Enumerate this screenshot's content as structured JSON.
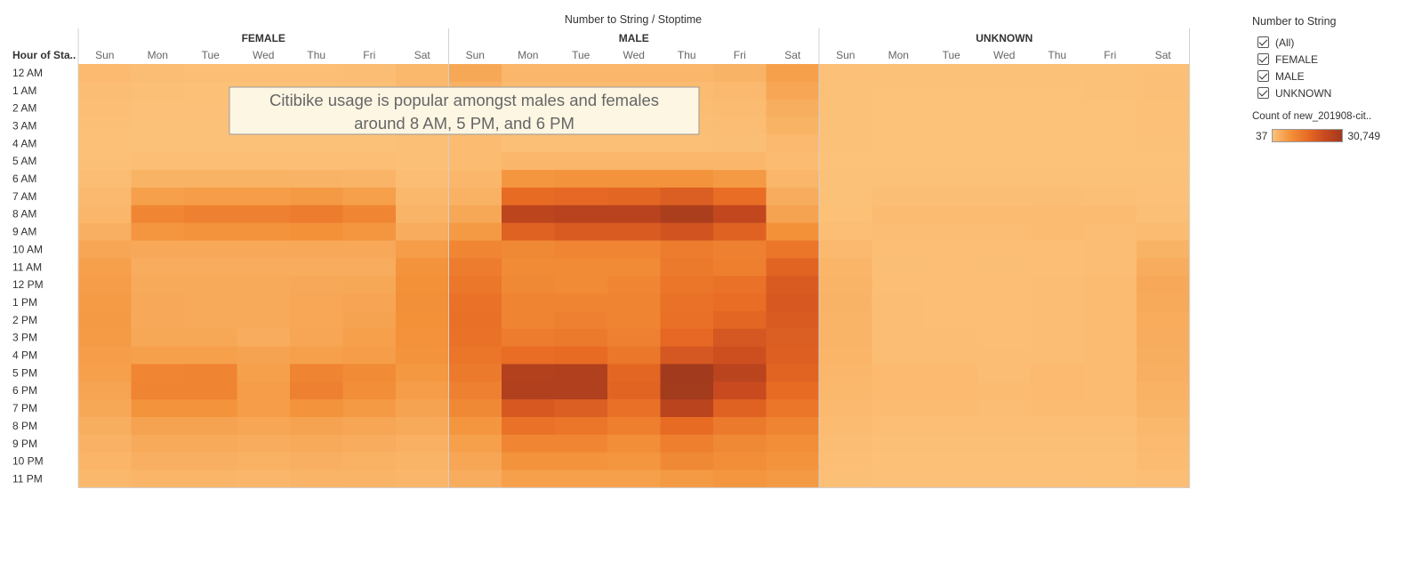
{
  "chart_data": {
    "type": "heatmap",
    "title": "Number to String / Stoptime",
    "row_header": "Hour of Sta..",
    "groups": [
      "FEMALE",
      "MALE",
      "UNKNOWN"
    ],
    "columns": [
      "Sun",
      "Mon",
      "Tue",
      "Wed",
      "Thu",
      "Fri",
      "Sat"
    ],
    "rows": [
      "12 AM",
      "1 AM",
      "2 AM",
      "3 AM",
      "4 AM",
      "5 AM",
      "6 AM",
      "7 AM",
      "8 AM",
      "9 AM",
      "10 AM",
      "11 AM",
      "12 PM",
      "1 PM",
      "2 PM",
      "3 PM",
      "4 PM",
      "5 PM",
      "6 PM",
      "7 PM",
      "8 PM",
      "9 PM",
      "10 PM",
      "11 PM"
    ],
    "color_range": [
      37,
      30749
    ],
    "values": {
      "FEMALE": [
        [
          1300,
          800,
          700,
          700,
          700,
          800,
          1700
        ],
        [
          900,
          500,
          400,
          400,
          400,
          500,
          1400
        ],
        [
          700,
          300,
          300,
          300,
          300,
          400,
          1000
        ],
        [
          500,
          200,
          200,
          200,
          200,
          300,
          800
        ],
        [
          400,
          200,
          200,
          200,
          200,
          200,
          500
        ],
        [
          500,
          700,
          700,
          700,
          700,
          700,
          500
        ],
        [
          900,
          2500,
          2500,
          2500,
          2400,
          2200,
          900
        ],
        [
          1400,
          5500,
          6000,
          6000,
          6500,
          5500,
          1600
        ],
        [
          2000,
          10000,
          11000,
          11000,
          12000,
          10000,
          2300
        ],
        [
          3000,
          7000,
          7500,
          7500,
          8000,
          7000,
          3500
        ],
        [
          4500,
          4000,
          4000,
          4000,
          4000,
          4000,
          6000
        ],
        [
          5500,
          3500,
          3500,
          3500,
          3500,
          3500,
          7500
        ],
        [
          6000,
          3800,
          3800,
          3800,
          4000,
          4200,
          8000
        ],
        [
          6300,
          4000,
          3800,
          3800,
          4300,
          4600,
          8200
        ],
        [
          6500,
          4000,
          3800,
          3800,
          4300,
          5000,
          8000
        ],
        [
          6300,
          4200,
          4200,
          3500,
          4500,
          5500,
          7800
        ],
        [
          6000,
          5500,
          5500,
          5000,
          5500,
          6000,
          7500
        ],
        [
          5500,
          10000,
          10500,
          5500,
          10500,
          9000,
          6800
        ],
        [
          4800,
          10500,
          10500,
          6000,
          11000,
          8500,
          6000
        ],
        [
          4200,
          7500,
          7500,
          6000,
          7500,
          6500,
          5000
        ],
        [
          3300,
          5000,
          5000,
          4500,
          5000,
          4500,
          3800
        ],
        [
          2600,
          3800,
          3800,
          3500,
          3800,
          3500,
          2900
        ],
        [
          2100,
          3000,
          3000,
          2800,
          3000,
          2800,
          2300
        ],
        [
          1600,
          2100,
          2100,
          2000,
          2200,
          2300,
          1900
        ]
      ],
      "MALE": [
        [
          4200,
          1800,
          1800,
          1900,
          2000,
          2400,
          5500
        ],
        [
          2800,
          1200,
          1100,
          1200,
          1200,
          1500,
          4500
        ],
        [
          2000,
          800,
          800,
          800,
          800,
          1000,
          3300
        ],
        [
          1400,
          600,
          600,
          600,
          600,
          800,
          2500
        ],
        [
          1000,
          500,
          500,
          500,
          500,
          600,
          1500
        ],
        [
          1000,
          1800,
          2000,
          2000,
          2000,
          1800,
          1000
        ],
        [
          1800,
          7000,
          7500,
          7500,
          7500,
          6500,
          2000
        ],
        [
          2800,
          15500,
          16000,
          16500,
          18500,
          15000,
          3400
        ],
        [
          4200,
          25500,
          26500,
          26500,
          29000,
          24500,
          5000
        ],
        [
          6500,
          17500,
          19000,
          19000,
          21000,
          17500,
          8000
        ],
        [
          10000,
          9500,
          10000,
          10000,
          12000,
          11000,
          13500
        ],
        [
          12000,
          9000,
          9000,
          9000,
          12500,
          11500,
          17000
        ],
        [
          13000,
          9500,
          9000,
          10000,
          13500,
          14000,
          19000
        ],
        [
          14000,
          10500,
          10500,
          10500,
          14000,
          15000,
          19500
        ],
        [
          14500,
          10500,
          11000,
          10500,
          14500,
          16500,
          19000
        ],
        [
          14000,
          12000,
          12500,
          11000,
          16000,
          20000,
          18500
        ],
        [
          13500,
          15000,
          15500,
          13000,
          20000,
          22000,
          18000
        ],
        [
          12500,
          27500,
          28000,
          16500,
          30749,
          26000,
          17000
        ],
        [
          11000,
          28000,
          28000,
          17000,
          30500,
          23000,
          15500
        ],
        [
          9500,
          19500,
          18500,
          14500,
          26000,
          17500,
          13500
        ],
        [
          7000,
          14000,
          13500,
          11500,
          15500,
          12500,
          10500
        ],
        [
          5500,
          10000,
          10000,
          8500,
          11500,
          9500,
          8500
        ],
        [
          4500,
          7500,
          7500,
          7000,
          9500,
          8500,
          7500
        ],
        [
          3500,
          5500,
          5500,
          5500,
          6500,
          7000,
          6500
        ]
      ],
      "UNKNOWN": [
        [
          300,
          150,
          150,
          150,
          150,
          200,
          500
        ],
        [
          250,
          100,
          100,
          100,
          100,
          150,
          450
        ],
        [
          200,
          80,
          80,
          80,
          80,
          100,
          350
        ],
        [
          150,
          60,
          60,
          60,
          60,
          80,
          300
        ],
        [
          120,
          50,
          37,
          50,
          50,
          60,
          200
        ],
        [
          100,
          80,
          80,
          80,
          80,
          80,
          100
        ],
        [
          150,
          250,
          250,
          250,
          250,
          200,
          150
        ],
        [
          250,
          600,
          600,
          600,
          650,
          550,
          300
        ],
        [
          400,
          1000,
          1000,
          1000,
          1100,
          1000,
          500
        ],
        [
          700,
          900,
          900,
          900,
          950,
          900,
          1100
        ],
        [
          1500,
          700,
          700,
          700,
          750,
          800,
          2500
        ],
        [
          2100,
          650,
          700,
          650,
          750,
          850,
          3500
        ],
        [
          2300,
          700,
          700,
          700,
          850,
          950,
          4000
        ],
        [
          2400,
          800,
          750,
          700,
          850,
          1000,
          3800
        ],
        [
          2300,
          800,
          750,
          700,
          850,
          1000,
          3600
        ],
        [
          2200,
          800,
          800,
          700,
          850,
          1000,
          3500
        ],
        [
          2100,
          900,
          900,
          800,
          900,
          1000,
          3300
        ],
        [
          1900,
          1300,
          1300,
          900,
          1300,
          1200,
          3000
        ],
        [
          1700,
          1300,
          1300,
          1000,
          1300,
          1200,
          2800
        ],
        [
          1500,
          1000,
          1000,
          900,
          1000,
          1000,
          2300
        ],
        [
          1100,
          700,
          700,
          700,
          700,
          700,
          1700
        ],
        [
          900,
          500,
          500,
          500,
          500,
          500,
          1300
        ],
        [
          700,
          400,
          400,
          400,
          400,
          400,
          1000
        ],
        [
          500,
          300,
          300,
          300,
          300,
          350,
          700
        ]
      ]
    }
  },
  "annotation": {
    "line1": "Citibike usage is popular amongst males and females",
    "line2": "around 8 AM, 5 PM, and 6 PM"
  },
  "filter": {
    "title": "Number to String",
    "items": [
      {
        "label": "(All)",
        "checked": true
      },
      {
        "label": "FEMALE",
        "checked": true
      },
      {
        "label": "MALE",
        "checked": true
      },
      {
        "label": "UNKNOWN",
        "checked": true
      }
    ]
  },
  "color_legend": {
    "title": "Count of new_201908-cit..",
    "min_label": "37",
    "max_label": "30,749",
    "colors": [
      "#fcc27a",
      "#f3923a",
      "#e86b24",
      "#c94a1f",
      "#a23a1d"
    ]
  }
}
